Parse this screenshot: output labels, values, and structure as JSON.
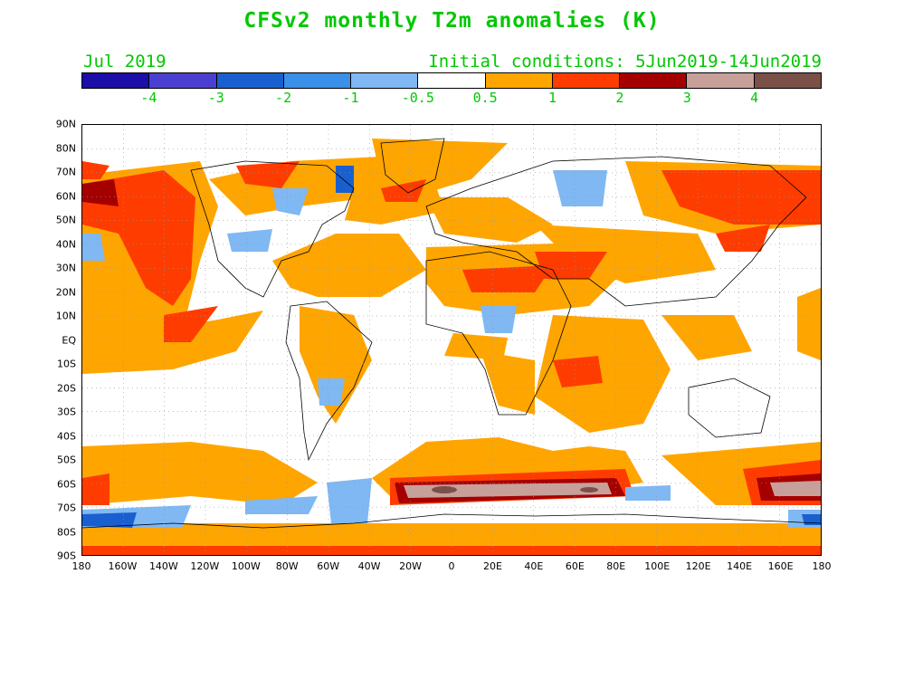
{
  "title": "CFSv2 monthly T2m anomalies (K)",
  "target_month": "Jul 2019",
  "initial_conditions": "Initial conditions: 5Jun2019-14Jun2019",
  "colorbar": {
    "colors": [
      "#1c0ea8",
      "#4b3fd1",
      "#1a5fd0",
      "#3a8fe8",
      "#7fb8f2",
      "#ffffff",
      "#ffa500",
      "#ff3c00",
      "#a50000",
      "#c8a09a",
      "#7a5048"
    ],
    "labels": [
      "-4",
      "-3",
      "-2",
      "-1",
      "-0.5",
      "0.5",
      "1",
      "2",
      "3",
      "4"
    ]
  },
  "lat_labels": [
    "90N",
    "80N",
    "70N",
    "60N",
    "50N",
    "40N",
    "30N",
    "20N",
    "10N",
    "EQ",
    "10S",
    "20S",
    "30S",
    "40S",
    "50S",
    "60S",
    "70S",
    "80S",
    "90S"
  ],
  "lon_labels": [
    "180",
    "160W",
    "140W",
    "120W",
    "100W",
    "80W",
    "60W",
    "40W",
    "20W",
    "0",
    "20E",
    "40E",
    "60E",
    "80E",
    "100E",
    "120E",
    "140E",
    "160E",
    "180"
  ]
}
